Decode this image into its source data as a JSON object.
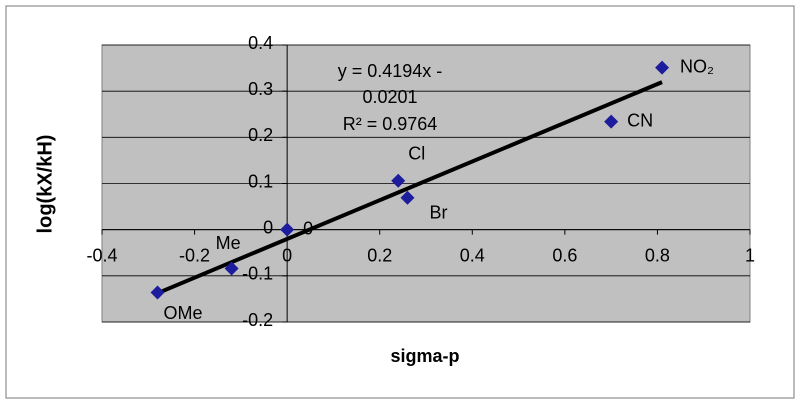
{
  "chart_data": {
    "type": "scatter",
    "xlabel": "sigma-p",
    "ylabel": "log(kX/kH)",
    "x": [
      -0.28,
      -0.12,
      0,
      0.24,
      0.26,
      0.7,
      0.81
    ],
    "series": [
      {
        "color": "#1c1c9c",
        "values": [
          -0.136,
          -0.084,
          0,
          0.106,
          0.069,
          0.234,
          0.351
        ]
      }
    ],
    "point_labels": [
      "OMe",
      "Me",
      "0",
      "Cl",
      "Br",
      "CN",
      "NO₂"
    ],
    "trendline": {
      "slope": 0.4194,
      "intercept": -0.0201,
      "color": "#000000"
    },
    "annotation": [
      "y = 0.4194x -",
      "0.0201",
      "R² = 0.9764"
    ],
    "xlim": [
      -0.4,
      1
    ],
    "ylim": [
      -0.2,
      0.4
    ],
    "xticks": [
      -0.4,
      -0.2,
      0,
      0.2,
      0.4,
      0.6,
      0.8,
      1
    ],
    "yticks": [
      -0.2,
      -0.1,
      0,
      0.1,
      0.2,
      0.3,
      0.4
    ],
    "grid": true,
    "plot_background": "#c0c0c0"
  }
}
